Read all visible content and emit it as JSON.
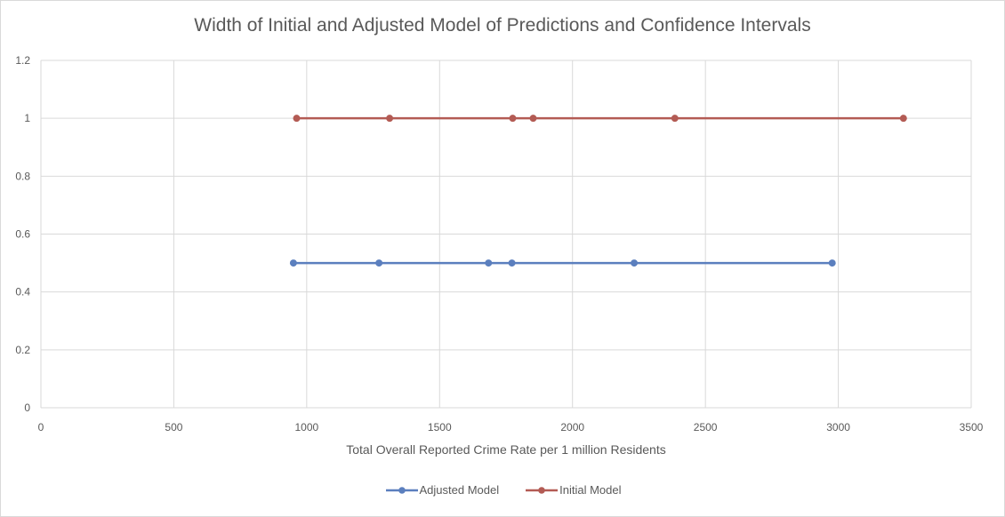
{
  "chart_data": {
    "type": "line",
    "title": "Width of Initial and Adjusted Model of Predictions and Confidence Intervals",
    "xlabel": "Total Overall Reported Crime Rate per 1 million Residents",
    "ylabel": "",
    "xlim": [
      0,
      3500
    ],
    "ylim": [
      0,
      1.2
    ],
    "x_ticks": [
      "0",
      "500",
      "1000",
      "1500",
      "2000",
      "2500",
      "3000",
      "3500"
    ],
    "y_ticks": [
      "0",
      "0.2",
      "0.4",
      "0.6",
      "0.8",
      "1",
      "1.2"
    ],
    "grid": true,
    "legend_position": "bottom",
    "series": [
      {
        "name": "Adjusted Model",
        "color": "#5b7fbe",
        "points": [
          {
            "x": 950,
            "y": 0.5
          },
          {
            "x": 1272,
            "y": 0.5
          },
          {
            "x": 1684,
            "y": 0.5
          },
          {
            "x": 1772,
            "y": 0.5
          },
          {
            "x": 2232,
            "y": 0.5
          },
          {
            "x": 2977,
            "y": 0.5
          }
        ]
      },
      {
        "name": "Initial Model",
        "color": "#b35b54",
        "points": [
          {
            "x": 962,
            "y": 1
          },
          {
            "x": 1312,
            "y": 1
          },
          {
            "x": 1775,
            "y": 1
          },
          {
            "x": 1852,
            "y": 1
          },
          {
            "x": 2385,
            "y": 1
          },
          {
            "x": 3245,
            "y": 1
          }
        ]
      }
    ]
  }
}
